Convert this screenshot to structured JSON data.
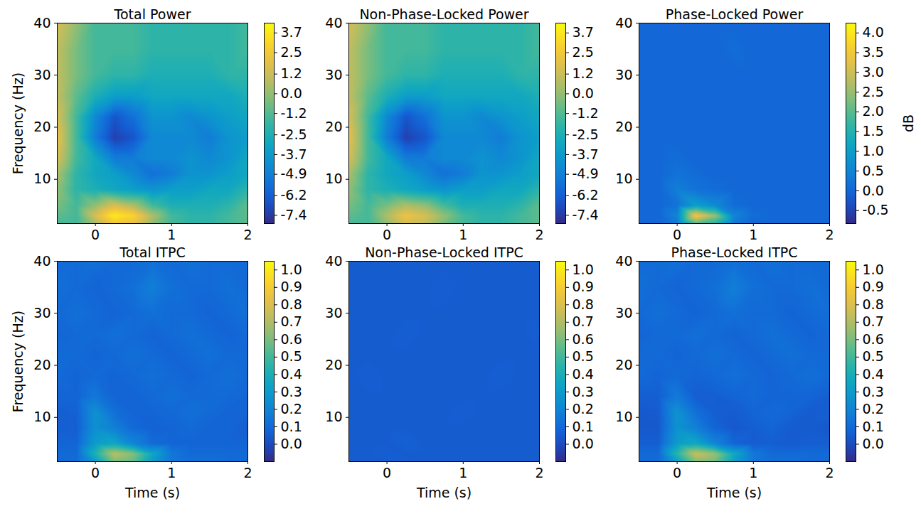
{
  "chart_data": [
    {
      "type": "heatmap",
      "title": "Total Power",
      "y_label": "Frequency (Hz)",
      "x": [
        -0.5,
        -0.25,
        0,
        0.25,
        0.5,
        0.75,
        1,
        1.25,
        1.5,
        1.75,
        2.0
      ],
      "y": [
        1.5,
        3,
        5,
        8,
        11,
        14,
        18,
        22,
        26,
        30,
        35,
        40
      ],
      "values": [
        [
          -1.5,
          -1.5,
          0.5,
          2.5,
          2.0,
          0,
          -1.5,
          -2,
          -2,
          -1.5,
          -1
        ],
        [
          -1,
          -1.5,
          1.5,
          3.8,
          3.0,
          0.5,
          -1.5,
          -2,
          -2,
          -1.5,
          -1
        ],
        [
          -0.5,
          -1.5,
          0,
          1.5,
          0.5,
          -1.5,
          -2.5,
          -2.5,
          -2.5,
          -2,
          -1
        ],
        [
          0,
          -2,
          -2.5,
          -3,
          -3.5,
          -4,
          -3.5,
          -3.5,
          -3,
          -3,
          -2
        ],
        [
          0.5,
          -2,
          -3,
          -3.5,
          -4.5,
          -5.5,
          -5,
          -4,
          -4,
          -3.5,
          -3
        ],
        [
          1.5,
          -1.5,
          -3,
          -5,
          -5,
          -4.5,
          -4.5,
          -4,
          -4.5,
          -4,
          -3
        ],
        [
          2.0,
          -1.5,
          -5,
          -7.2,
          -6.5,
          -4.5,
          -4.5,
          -4.5,
          -5,
          -4,
          -3.5
        ],
        [
          1.5,
          -1.5,
          -4.5,
          -6.5,
          -5.5,
          -4,
          -4,
          -4.5,
          -4,
          -3.5,
          -3
        ],
        [
          1.0,
          -1,
          -2.5,
          -3.5,
          -3.5,
          -3,
          -3,
          -3,
          -3,
          -3,
          -2.5
        ],
        [
          1.0,
          -0.5,
          -1.5,
          -2,
          -2,
          -2.5,
          -2.5,
          -2.5,
          -2.5,
          -2,
          -2
        ],
        [
          1.0,
          -0.5,
          -1.5,
          -1.5,
          -1.5,
          -2,
          -2,
          -2,
          -2,
          -2,
          -1.5
        ],
        [
          1.5,
          0,
          -1.5,
          -1.5,
          -1.5,
          -2,
          -2,
          -2,
          -2,
          -2,
          -1.5
        ]
      ],
      "xlim": [
        -0.5,
        2.0
      ],
      "ylim": [
        1.5,
        40
      ],
      "xticks": [
        0,
        1,
        2
      ],
      "yticks": [
        10,
        20,
        30,
        40
      ],
      "colorbar": {
        "range": [
          -7.9,
          4.3
        ],
        "ticks": [
          3.7,
          2.5,
          1.2,
          {
            "value": 0,
            "label": "0.0"
          },
          -1.2,
          -2.5,
          -3.7,
          -4.9,
          -6.2,
          -7.4
        ]
      }
    },
    {
      "type": "heatmap",
      "title": "Non-Phase-Locked Power",
      "x": [
        -0.5,
        -0.25,
        0,
        0.25,
        0.5,
        0.75,
        1,
        1.25,
        1.5,
        1.75,
        2.0
      ],
      "y": [
        1.5,
        3,
        5,
        8,
        11,
        14,
        18,
        22,
        26,
        30,
        35,
        40
      ],
      "values": [
        [
          -1.5,
          -1.5,
          0,
          1.5,
          1.0,
          -0.5,
          -1.5,
          -2,
          -2,
          -1.5,
          -1
        ],
        [
          -1,
          -1.5,
          0.5,
          2.2,
          1.5,
          0,
          -1.5,
          -2,
          -2,
          -1.5,
          -1
        ],
        [
          -0.5,
          -1.5,
          -0.5,
          0.5,
          0,
          -1.5,
          -2.5,
          -2.5,
          -2.5,
          -2,
          -1
        ],
        [
          0,
          -2,
          -2.5,
          -3,
          -3.5,
          -4,
          -3.5,
          -3.5,
          -3,
          -3,
          -2
        ],
        [
          0.5,
          -2,
          -3,
          -3.5,
          -4.5,
          -5.5,
          -5,
          -4,
          -4,
          -3.5,
          -3
        ],
        [
          1.5,
          -1.5,
          -3,
          -5,
          -5,
          -4.5,
          -4.5,
          -4,
          -4.5,
          -4,
          -3
        ],
        [
          2.0,
          -1.5,
          -5,
          -7.2,
          -6.5,
          -4.5,
          -4.5,
          -4.5,
          -5,
          -4,
          -3.5
        ],
        [
          1.5,
          -1.5,
          -4.5,
          -6.5,
          -5.5,
          -4,
          -4,
          -4.5,
          -4,
          -3.5,
          -3
        ],
        [
          1.0,
          -1,
          -2.5,
          -3.5,
          -3.5,
          -3,
          -3,
          -3,
          -3,
          -3,
          -2.5
        ],
        [
          1.0,
          -0.5,
          -1.5,
          -2,
          -2,
          -2.5,
          -2.5,
          -2.5,
          -2.5,
          -2,
          -2
        ],
        [
          1.0,
          -0.5,
          -1.5,
          -1.5,
          -1.5,
          -2,
          -2,
          -2,
          -2,
          -2,
          -1.5
        ],
        [
          1.5,
          0,
          -1.5,
          -1.5,
          -1.5,
          -2,
          -2,
          -2,
          -2,
          -2,
          -1.5
        ]
      ],
      "xlim": [
        -0.5,
        2.0
      ],
      "ylim": [
        1.5,
        40
      ],
      "xticks": [
        0,
        1,
        2
      ],
      "yticks": [
        10,
        20,
        30,
        40
      ],
      "colorbar": {
        "range": [
          -7.9,
          4.3
        ],
        "ticks": [
          3.7,
          2.5,
          1.2,
          {
            "value": 0,
            "label": "0.0"
          },
          -1.2,
          -2.5,
          -3.7,
          -4.9,
          -6.2,
          -7.4
        ]
      }
    },
    {
      "type": "heatmap",
      "title": "Phase-Locked Power",
      "x": [
        -0.5,
        -0.25,
        0,
        0.25,
        0.5,
        0.75,
        1,
        1.25,
        1.5,
        1.75,
        2.0
      ],
      "y": [
        1.5,
        3,
        5,
        8,
        11,
        14,
        18,
        22,
        26,
        30,
        35,
        40
      ],
      "values": [
        [
          0,
          0,
          0.3,
          2.0,
          1.5,
          0.3,
          0,
          0,
          0,
          0,
          0
        ],
        [
          0,
          0,
          0.5,
          3.5,
          2.5,
          0.5,
          0.1,
          0,
          0,
          0,
          0
        ],
        [
          0,
          0,
          0.2,
          1.0,
          0.6,
          0.1,
          0,
          0,
          0,
          0,
          0
        ],
        [
          0,
          0,
          0.4,
          0.2,
          0.1,
          0,
          0,
          0,
          0,
          0,
          0
        ],
        [
          0,
          0,
          0.2,
          0.1,
          0,
          0,
          0,
          0,
          0,
          0,
          0
        ],
        [
          0,
          0,
          0.1,
          0,
          0,
          0,
          0,
          0,
          0,
          0,
          0
        ],
        [
          0,
          0,
          0,
          0,
          0,
          0,
          0,
          0,
          0,
          0,
          0
        ],
        [
          0,
          0,
          0,
          0,
          0,
          0,
          0,
          0,
          0,
          0,
          0
        ],
        [
          0,
          0,
          0,
          0,
          0,
          0,
          0,
          0,
          0,
          0,
          0
        ],
        [
          0,
          0,
          0,
          0,
          0,
          0,
          0,
          0,
          0,
          0,
          0
        ],
        [
          0,
          0,
          0,
          0,
          0,
          0.1,
          0,
          0,
          0,
          0,
          0
        ],
        [
          0,
          0,
          0,
          0,
          0,
          0,
          0,
          0,
          0,
          0,
          0
        ]
      ],
      "xlim": [
        -0.5,
        2.0
      ],
      "ylim": [
        1.5,
        40
      ],
      "xticks": [
        0,
        1,
        2
      ],
      "yticks": [
        10,
        20,
        30,
        40
      ],
      "colorbar": {
        "range": [
          -0.83,
          4.25
        ],
        "label": "dB",
        "ticks": [
          -0.5,
          {
            "value": 0,
            "label": "0.0"
          },
          0.5,
          {
            "value": 1,
            "label": "1.0"
          },
          1.5,
          {
            "value": 2,
            "label": "2.0"
          },
          2.5,
          {
            "value": 3,
            "label": "3.0"
          },
          3.5,
          {
            "value": 4,
            "label": "4.0"
          }
        ]
      }
    },
    {
      "type": "heatmap",
      "title": "Total ITPC",
      "x_label": "Time (s)",
      "y_label": "Frequency (Hz)",
      "x": [
        -0.5,
        -0.25,
        0,
        0.25,
        0.5,
        0.75,
        1,
        1.25,
        1.5,
        1.75,
        2.0
      ],
      "y": [
        1.5,
        3,
        5,
        8,
        11,
        14,
        18,
        22,
        26,
        30,
        35,
        40
      ],
      "values": [
        [
          0.1,
          0.1,
          0.3,
          0.6,
          0.55,
          0.3,
          0.15,
          0.12,
          0.12,
          0.1,
          0.1
        ],
        [
          0.1,
          0.1,
          0.42,
          0.72,
          0.62,
          0.35,
          0.15,
          0.1,
          0.1,
          0.1,
          0.1
        ],
        [
          0.08,
          0.08,
          0.3,
          0.35,
          0.2,
          0.1,
          0.08,
          0.08,
          0.08,
          0.08,
          0.08
        ],
        [
          0.06,
          0.06,
          0.25,
          0.18,
          0.1,
          0.07,
          0.08,
          0.1,
          0.08,
          0.08,
          0.06
        ],
        [
          0.06,
          0.07,
          0.25,
          0.12,
          0.08,
          0.08,
          0.1,
          0.12,
          0.1,
          0.08,
          0.08
        ],
        [
          0.08,
          0.08,
          0.15,
          0.08,
          0.08,
          0.1,
          0.12,
          0.1,
          0.1,
          0.1,
          0.08
        ],
        [
          0.1,
          0.08,
          0.1,
          0.08,
          0.1,
          0.12,
          0.1,
          0.08,
          0.1,
          0.12,
          0.1
        ],
        [
          0.1,
          0.1,
          0.08,
          0.1,
          0.12,
          0.1,
          0.08,
          0.1,
          0.12,
          0.1,
          0.1
        ],
        [
          0.08,
          0.1,
          0.1,
          0.12,
          0.1,
          0.08,
          0.1,
          0.12,
          0.1,
          0.08,
          0.1
        ],
        [
          0.1,
          0.12,
          0.1,
          0.08,
          0.1,
          0.12,
          0.1,
          0.1,
          0.08,
          0.1,
          0.12
        ],
        [
          0.12,
          0.1,
          0.08,
          0.1,
          0.12,
          0.18,
          0.12,
          0.1,
          0.1,
          0.12,
          0.1
        ],
        [
          0.1,
          0.1,
          0.12,
          0.1,
          0.1,
          0.12,
          0.1,
          0.12,
          0.1,
          0.1,
          0.1
        ]
      ],
      "xlim": [
        -0.5,
        2.0
      ],
      "ylim": [
        1.5,
        40
      ],
      "xticks": [
        0,
        1,
        2
      ],
      "yticks": [
        10,
        20,
        30,
        40
      ],
      "colorbar": {
        "range": [
          -0.1,
          1.05
        ],
        "ticks": [
          {
            "value": 1,
            "label": "1.0"
          },
          0.9,
          0.8,
          0.7,
          0.6,
          0.5,
          0.4,
          0.3,
          0.2,
          0.1,
          {
            "value": 0,
            "label": "0.0"
          }
        ]
      }
    },
    {
      "type": "heatmap",
      "title": "Non-Phase-Locked ITPC",
      "x_label": "Time (s)",
      "x": [
        -0.5,
        -0.25,
        0,
        0.25,
        0.5,
        0.75,
        1,
        1.25,
        1.5,
        1.75,
        2.0
      ],
      "y": [
        1.5,
        3,
        5,
        8,
        11,
        14,
        18,
        22,
        26,
        30,
        35,
        40
      ],
      "values": [
        [
          0.05,
          0.05,
          0.05,
          0.06,
          0.05,
          0.05,
          0.05,
          0.05,
          0.05,
          0.05,
          0.05
        ],
        [
          0.05,
          0.05,
          0.06,
          0.05,
          0.05,
          0.05,
          0.05,
          0.05,
          0.05,
          0.05,
          0.05
        ],
        [
          0.05,
          0.05,
          0.05,
          0.07,
          0.05,
          0.05,
          0.05,
          0.05,
          0.05,
          0.05,
          0.05
        ],
        [
          0.05,
          0.05,
          0.05,
          0.05,
          0.05,
          0.05,
          0.05,
          0.05,
          0.05,
          0.05,
          0.05
        ],
        [
          0.05,
          0.05,
          0.05,
          0.05,
          0.05,
          0.05,
          0.06,
          0.05,
          0.05,
          0.05,
          0.05
        ],
        [
          0.05,
          0.05,
          0.05,
          0.05,
          0.05,
          0.05,
          0.05,
          0.05,
          0.05,
          0.05,
          0.05
        ],
        [
          0.05,
          0.06,
          0.05,
          0.05,
          0.05,
          0.05,
          0.05,
          0.05,
          0.06,
          0.05,
          0.05
        ],
        [
          0.05,
          0.05,
          0.05,
          0.05,
          0.05,
          0.05,
          0.05,
          0.05,
          0.05,
          0.05,
          0.05
        ],
        [
          0.05,
          0.05,
          0.05,
          0.06,
          0.05,
          0.05,
          0.05,
          0.05,
          0.05,
          0.05,
          0.06
        ],
        [
          0.05,
          0.05,
          0.05,
          0.05,
          0.05,
          0.05,
          0.05,
          0.05,
          0.05,
          0.05,
          0.05
        ],
        [
          0.05,
          0.05,
          0.05,
          0.05,
          0.05,
          0.06,
          0.05,
          0.05,
          0.05,
          0.05,
          0.05
        ],
        [
          0.05,
          0.05,
          0.05,
          0.05,
          0.05,
          0.05,
          0.05,
          0.05,
          0.05,
          0.05,
          0.05
        ]
      ],
      "xlim": [
        -0.5,
        2.0
      ],
      "ylim": [
        1.5,
        40
      ],
      "xticks": [
        0,
        1,
        2
      ],
      "yticks": [
        10,
        20,
        30,
        40
      ],
      "colorbar": {
        "range": [
          -0.1,
          1.05
        ],
        "ticks": [
          {
            "value": 1,
            "label": "1.0"
          },
          0.9,
          0.8,
          0.7,
          0.6,
          0.5,
          0.4,
          0.3,
          0.2,
          0.1,
          {
            "value": 0,
            "label": "0.0"
          }
        ]
      }
    },
    {
      "type": "heatmap",
      "title": "Phase-Locked ITPC",
      "x_label": "Time (s)",
      "x": [
        -0.5,
        -0.25,
        0,
        0.25,
        0.5,
        0.75,
        1,
        1.25,
        1.5,
        1.75,
        2.0
      ],
      "y": [
        1.5,
        3,
        5,
        8,
        11,
        14,
        18,
        22,
        26,
        30,
        35,
        40
      ],
      "values": [
        [
          0.1,
          0.1,
          0.32,
          0.62,
          0.58,
          0.32,
          0.15,
          0.12,
          0.12,
          0.1,
          0.1
        ],
        [
          0.1,
          0.1,
          0.45,
          0.75,
          0.65,
          0.36,
          0.15,
          0.1,
          0.1,
          0.1,
          0.1
        ],
        [
          0.06,
          0.06,
          0.3,
          0.36,
          0.2,
          0.08,
          0.05,
          0.06,
          0.05,
          0.06,
          0.06
        ],
        [
          0.04,
          0.04,
          0.26,
          0.18,
          0.08,
          0.04,
          0.06,
          0.08,
          0.05,
          0.05,
          0.04
        ],
        [
          0.04,
          0.05,
          0.26,
          0.12,
          0.06,
          0.05,
          0.08,
          0.1,
          0.08,
          0.05,
          0.06
        ],
        [
          0.06,
          0.06,
          0.16,
          0.06,
          0.06,
          0.08,
          0.1,
          0.08,
          0.08,
          0.08,
          0.06
        ],
        [
          0.1,
          0.08,
          0.1,
          0.08,
          0.1,
          0.12,
          0.1,
          0.08,
          0.1,
          0.12,
          0.1
        ],
        [
          0.1,
          0.1,
          0.08,
          0.1,
          0.12,
          0.1,
          0.08,
          0.1,
          0.12,
          0.1,
          0.1
        ],
        [
          0.08,
          0.1,
          0.1,
          0.12,
          0.1,
          0.08,
          0.1,
          0.12,
          0.1,
          0.08,
          0.1
        ],
        [
          0.1,
          0.12,
          0.1,
          0.08,
          0.1,
          0.12,
          0.1,
          0.1,
          0.08,
          0.1,
          0.12
        ],
        [
          0.12,
          0.1,
          0.08,
          0.1,
          0.12,
          0.18,
          0.12,
          0.1,
          0.1,
          0.12,
          0.1
        ],
        [
          0.1,
          0.1,
          0.12,
          0.1,
          0.1,
          0.12,
          0.1,
          0.12,
          0.1,
          0.1,
          0.1
        ]
      ],
      "xlim": [
        -0.5,
        2.0
      ],
      "ylim": [
        1.5,
        40
      ],
      "xticks": [
        0,
        1,
        2
      ],
      "yticks": [
        10,
        20,
        30,
        40
      ],
      "colorbar": {
        "range": [
          -0.1,
          1.05
        ],
        "ticks": [
          {
            "value": 1,
            "label": "1.0"
          },
          0.9,
          0.8,
          0.7,
          0.6,
          0.5,
          0.4,
          0.3,
          0.2,
          0.1,
          {
            "value": 0,
            "label": "0.0"
          }
        ]
      }
    }
  ]
}
